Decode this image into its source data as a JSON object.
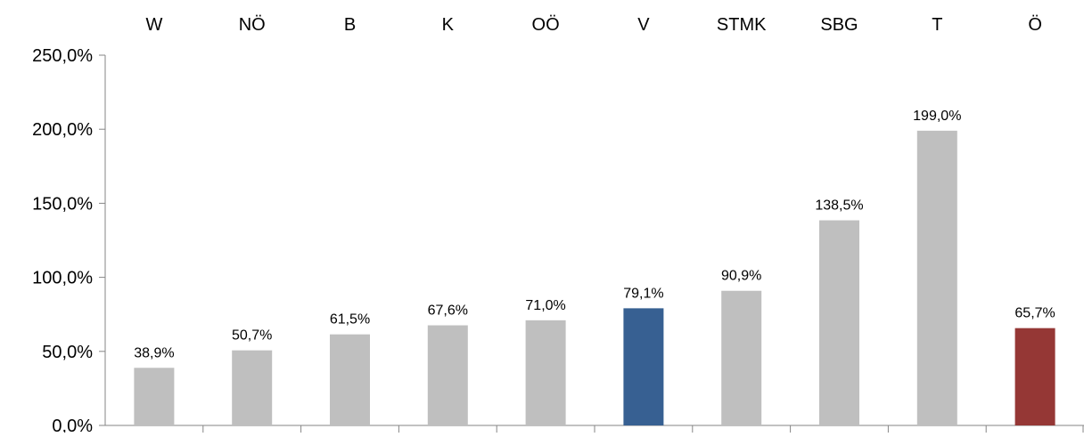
{
  "chart_data": {
    "type": "bar",
    "categories": [
      "W",
      "NÖ",
      "B",
      "K",
      "OÖ",
      "V",
      "STMK",
      "SBG",
      "T",
      "Ö"
    ],
    "values": [
      38.9,
      50.7,
      61.5,
      67.6,
      71.0,
      79.1,
      90.9,
      138.5,
      199.0,
      65.7
    ],
    "data_labels": [
      "38,9%",
      "50,7%",
      "61,5%",
      "67,6%",
      "71,0%",
      "79,1%",
      "90,9%",
      "138,5%",
      "199,0%",
      "65,7%"
    ],
    "bar_colors": [
      "#bfbfbf",
      "#bfbfbf",
      "#bfbfbf",
      "#bfbfbf",
      "#bfbfbf",
      "#376092",
      "#bfbfbf",
      "#bfbfbf",
      "#bfbfbf",
      "#953735"
    ],
    "title": "",
    "xlabel": "",
    "ylabel": "",
    "ylim": [
      0,
      250
    ],
    "yticks": [
      0,
      50,
      100,
      150,
      200,
      250
    ],
    "ytick_labels": [
      "0,0%",
      "50,0%",
      "100,0%",
      "150,0%",
      "200,0%",
      "250,0%"
    ],
    "category_axis_position": "top",
    "grid": false,
    "axis_color": "#868686"
  }
}
